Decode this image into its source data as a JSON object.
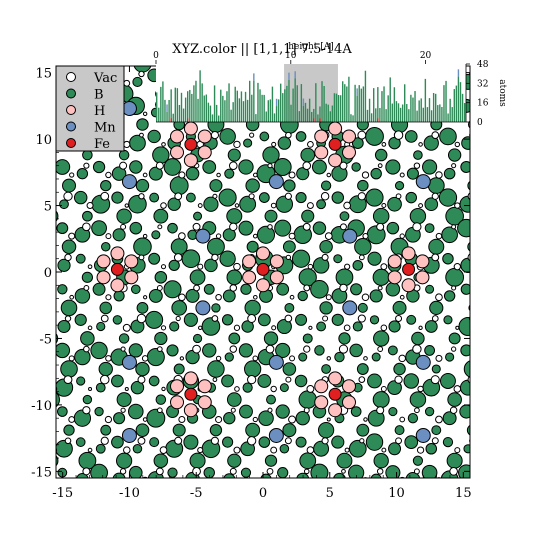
{
  "title": "XYZ.color || [1,1,1] 7.5-14A",
  "legend": [
    {
      "label": "Vac",
      "color": "#ffffff"
    },
    {
      "label": "B",
      "color": "#2e8b57"
    },
    {
      "label": "H",
      "color": "#ffc0c0"
    },
    {
      "label": "Mn",
      "color": "#6a8fc0"
    },
    {
      "label": "Fe",
      "color": "#e02020"
    }
  ],
  "chart_data": [
    {
      "type": "scatter",
      "title": "XYZ.color || [1,1,1] 7.5-14A",
      "xlim": [
        -15.5,
        15.5
      ],
      "ylim": [
        -15.5,
        15.5
      ],
      "xticks": [
        "-15",
        "-10",
        "-5",
        "0",
        "5",
        "10",
        "15"
      ],
      "yticks": [
        "-15",
        "-10",
        "-5",
        "0",
        "5",
        "10",
        "15"
      ],
      "grid": false,
      "legend_position": "top-left",
      "series": [
        {
          "name": "Fe",
          "points": [
            [
              -10.9,
              0.2
            ],
            [
              0,
              0.2
            ],
            [
              10.9,
              0.2
            ],
            [
              -5.4,
              9.6
            ],
            [
              5.4,
              9.6
            ],
            [
              -5.4,
              -9.2
            ],
            [
              5.4,
              -9.2
            ]
          ]
        },
        {
          "name": "Mn",
          "points": [
            [
              -10,
              6.8
            ],
            [
              1,
              6.8
            ],
            [
              12,
              6.8
            ],
            [
              -4.5,
              2.7
            ],
            [
              6.5,
              2.7
            ],
            [
              -4.5,
              -2.7
            ],
            [
              6.5,
              -2.7
            ],
            [
              -10,
              -6.8
            ],
            [
              1,
              -6.8
            ],
            [
              12,
              -6.8
            ],
            [
              -10,
              -12.3
            ],
            [
              1,
              -12.3
            ],
            [
              12,
              -12.3
            ],
            [
              -10,
              12.3
            ],
            [
              1,
              12.3
            ],
            [
              12,
              12.3
            ]
          ]
        },
        {
          "name": "H",
          "clusters_around_fe": true
        },
        {
          "name": "B",
          "note_lattice": true
        },
        {
          "name": "Vac",
          "note_lattice": true
        }
      ]
    },
    {
      "type": "bar",
      "title": "",
      "xlabel": "height [A]",
      "ylabel": "atoms",
      "xlim": [
        0,
        23
      ],
      "ylim": [
        0,
        48
      ],
      "xticks": [
        "0",
        "10",
        "20"
      ],
      "yticks": [
        "0",
        "16",
        "32",
        "48"
      ],
      "highlight_range": [
        9.5,
        13.5
      ],
      "series_colors": {
        "B": "#2e8b57",
        "Fe": "#e02020",
        "Mn": "#6a8fc0",
        "H": "#ffc0c0"
      }
    }
  ]
}
